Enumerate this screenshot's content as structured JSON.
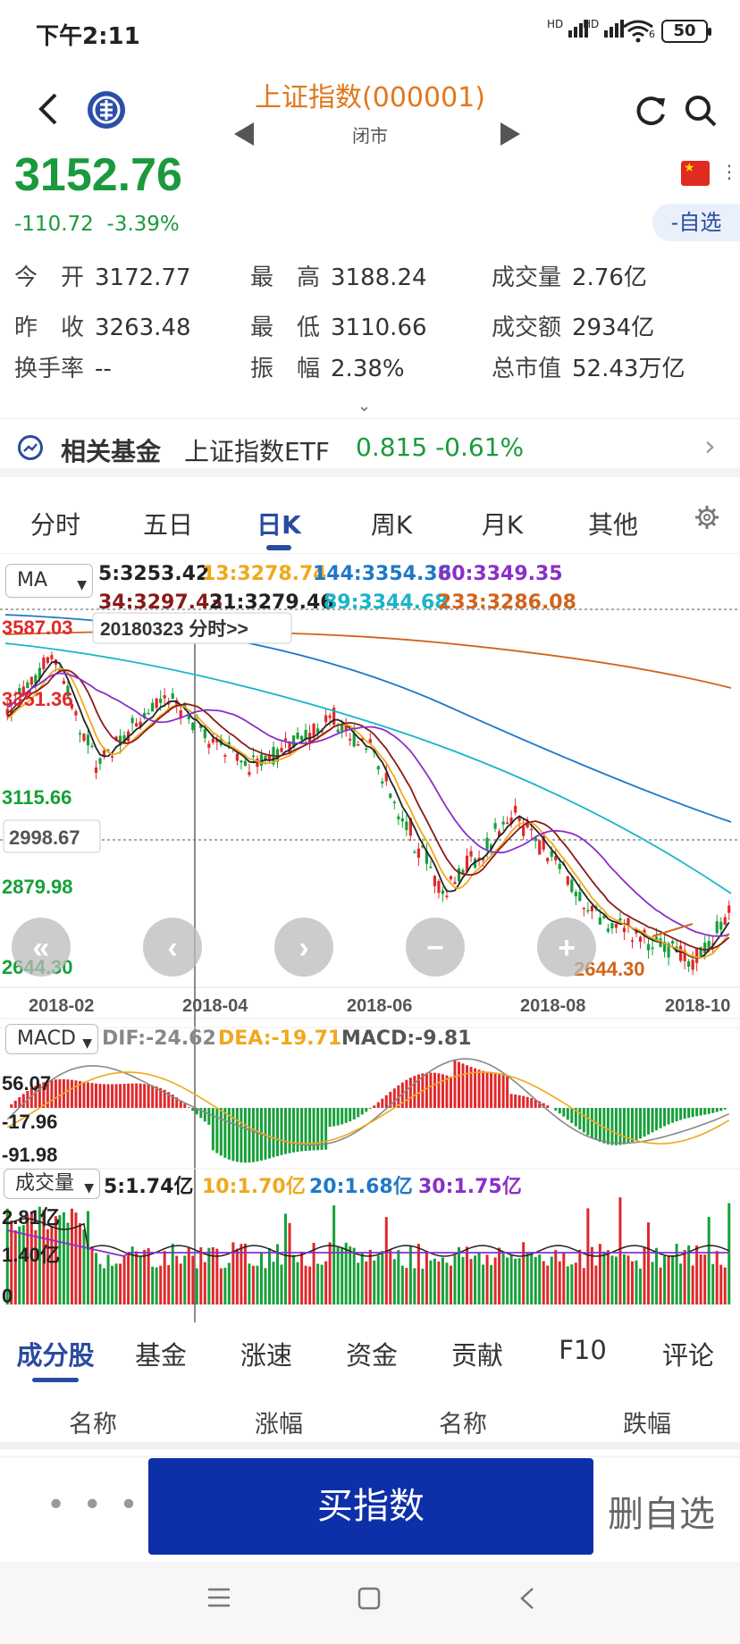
{
  "status_bar": {
    "time": "下午2:11",
    "signal1": "HD",
    "signal2": "HD",
    "wifi_badge": "6",
    "battery": "50"
  },
  "header": {
    "title": "上证指数(000001)",
    "subtitle": "闭市"
  },
  "quote": {
    "price": "3152.76",
    "change": "-110.72",
    "change_pct": "-3.39%",
    "watch_button": "-自选",
    "stats": [
      {
        "label": "今　开",
        "value": "3172.77"
      },
      {
        "label": "最　高",
        "value": "3188.24"
      },
      {
        "label": "成交量",
        "value": "2.76亿"
      },
      {
        "label": "昨　收",
        "value": "3263.48"
      },
      {
        "label": "最　低",
        "value": "3110.66"
      },
      {
        "label": "成交额",
        "value": "2934亿"
      },
      {
        "label": "换手率",
        "value": "--"
      },
      {
        "label": "振　幅",
        "value": "2.38%"
      },
      {
        "label": "总市值",
        "value": "52.43万亿"
      }
    ]
  },
  "related_fund": {
    "label": "相关基金",
    "name": "上证指数ETF",
    "value": "0.815",
    "change": "-0.61%"
  },
  "chart_tabs": [
    "分时",
    "五日",
    "日K",
    "周K",
    "月K",
    "其他"
  ],
  "chart": {
    "ma_selector": "MA",
    "ma_legend": [
      {
        "text": "5:3253.42",
        "color": "#222222"
      },
      {
        "text": "13:3278.74",
        "color": "#f0a81c"
      },
      {
        "text": "144:3354.38",
        "color": "#1f78c8"
      },
      {
        "text": "60:3349.35",
        "color": "#8a2fc8"
      },
      {
        "text": "34:3297.43",
        "color": "#8b1a1a"
      },
      {
        "text": "21:3279.46",
        "color": "#222222"
      },
      {
        "text": "89:3344.68",
        "color": "#19b5c8"
      },
      {
        "text": "233:3286.08",
        "color": "#d0641c"
      }
    ],
    "crosshair_label": "20180323 分时>>",
    "price_labels": [
      "3587.03",
      "3351.36",
      "3115.66",
      "2998.67",
      "2879.98",
      "2644.30"
    ],
    "low_marker": "2644.30",
    "date_labels": [
      "2018-02",
      "2018-04",
      "2018-06",
      "2018-08",
      "2018-10"
    ],
    "macd_selector": "MACD",
    "macd_legend": [
      {
        "text": "DIF:-24.62",
        "color": "#888888"
      },
      {
        "text": "DEA:-19.71",
        "color": "#f0a81c"
      },
      {
        "text": "MACD:-9.81",
        "color": "#555555"
      }
    ],
    "macd_labels": [
      "56.07",
      "-17.96",
      "-91.98"
    ],
    "vol_selector": "成交量",
    "vol_legend": [
      {
        "text": "5:1.74亿",
        "color": "#222222"
      },
      {
        "text": "10:1.70亿",
        "color": "#f0a81c"
      },
      {
        "text": "20:1.68亿",
        "color": "#1f78c8"
      },
      {
        "text": "30:1.75亿",
        "color": "#8a2fc8"
      }
    ],
    "vol_labels": [
      "2.81亿",
      "1.40亿",
      "0"
    ],
    "colors": {
      "up": "#e0282a",
      "down": "#16a03a"
    }
  },
  "bottom_tabs": [
    "成分股",
    "基金",
    "涨速",
    "资金",
    "贡献",
    "F10",
    "评论"
  ],
  "table_headers": [
    "名称",
    "涨幅",
    "名称",
    "跌幅"
  ],
  "actions": {
    "more": "• • •",
    "buy": "买指数",
    "remove": "删自选"
  }
}
